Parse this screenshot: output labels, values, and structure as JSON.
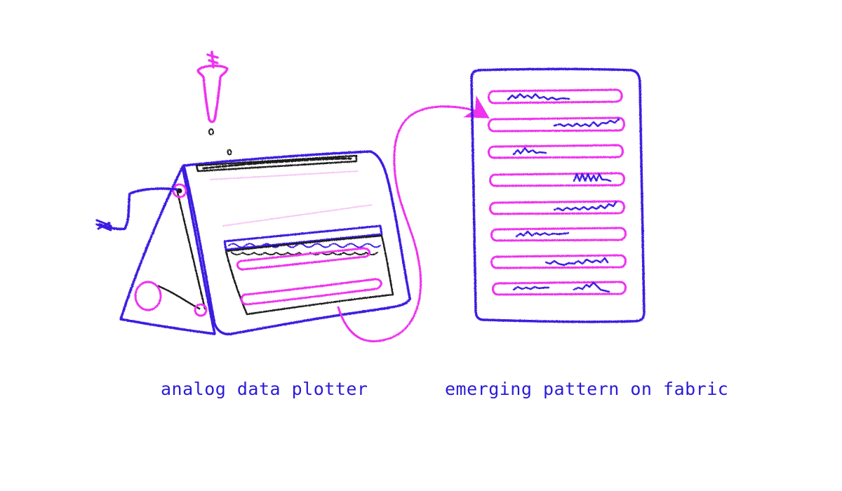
{
  "captions": {
    "plotter": "analog data plotter",
    "fabric": "emerging pattern on fabric"
  },
  "colors": {
    "blue": "#3a1fe0",
    "magenta": "#ee33ee",
    "black": "#1a1a1a",
    "text": "#2a1ad8"
  },
  "icons": {
    "plotter": "hand-cranked-plotter-icon",
    "dropper": "ink-dropper-icon",
    "fabric": "fabric-panel-icon",
    "arrow": "curved-arrow-icon"
  }
}
